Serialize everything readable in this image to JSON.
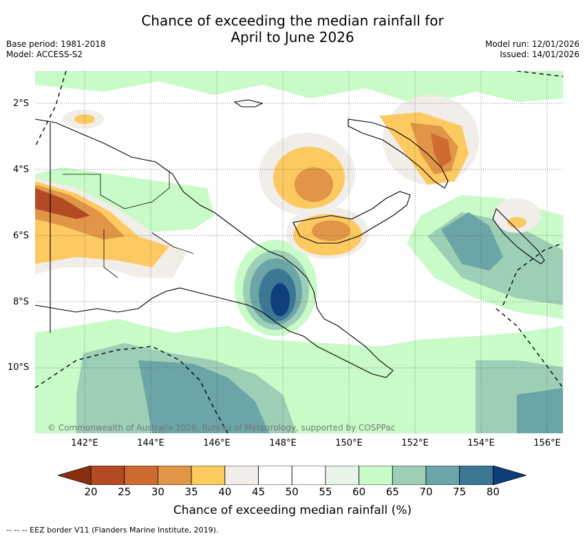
{
  "title_line1": "Chance of exceeding the median rainfall for",
  "title_line2": "April to June 2026",
  "base_period": "Base period: 1981-2018",
  "model": "Model: ACCESS-S2",
  "model_run": "Model run: 12/01/2026",
  "issued": "Issued: 14/01/2026",
  "copyright": "© Commonwealth of Australia 2026, Bureau of Meteorology, supported by COSPPac",
  "lat_labels": [
    "2°S",
    "4°S",
    "6°S",
    "8°S",
    "10°S"
  ],
  "lon_labels": [
    "142°E",
    "144°E",
    "146°E",
    "148°E",
    "150°E",
    "152°E",
    "154°E",
    "156°E"
  ],
  "colorbar": {
    "ticks": [
      "20",
      "25",
      "30",
      "35",
      "40",
      "45",
      "50",
      "55",
      "60",
      "65",
      "70",
      "75",
      "80"
    ],
    "colors": [
      "#8b2e10",
      "#b34a23",
      "#cd6b31",
      "#e09547",
      "#fdc961",
      "#f1ede8",
      "#ffffff",
      "#ffffff",
      "#eaf5ea",
      "#c8fbc7",
      "#9dcfb7",
      "#6ba5a7",
      "#3c7894",
      "#0e3f7c"
    ],
    "label": "Chance of exceeding median rainfall (%)"
  },
  "footnote": "-- -- -- EEZ border V11 (Flanders Marine Institute, 2019)."
}
